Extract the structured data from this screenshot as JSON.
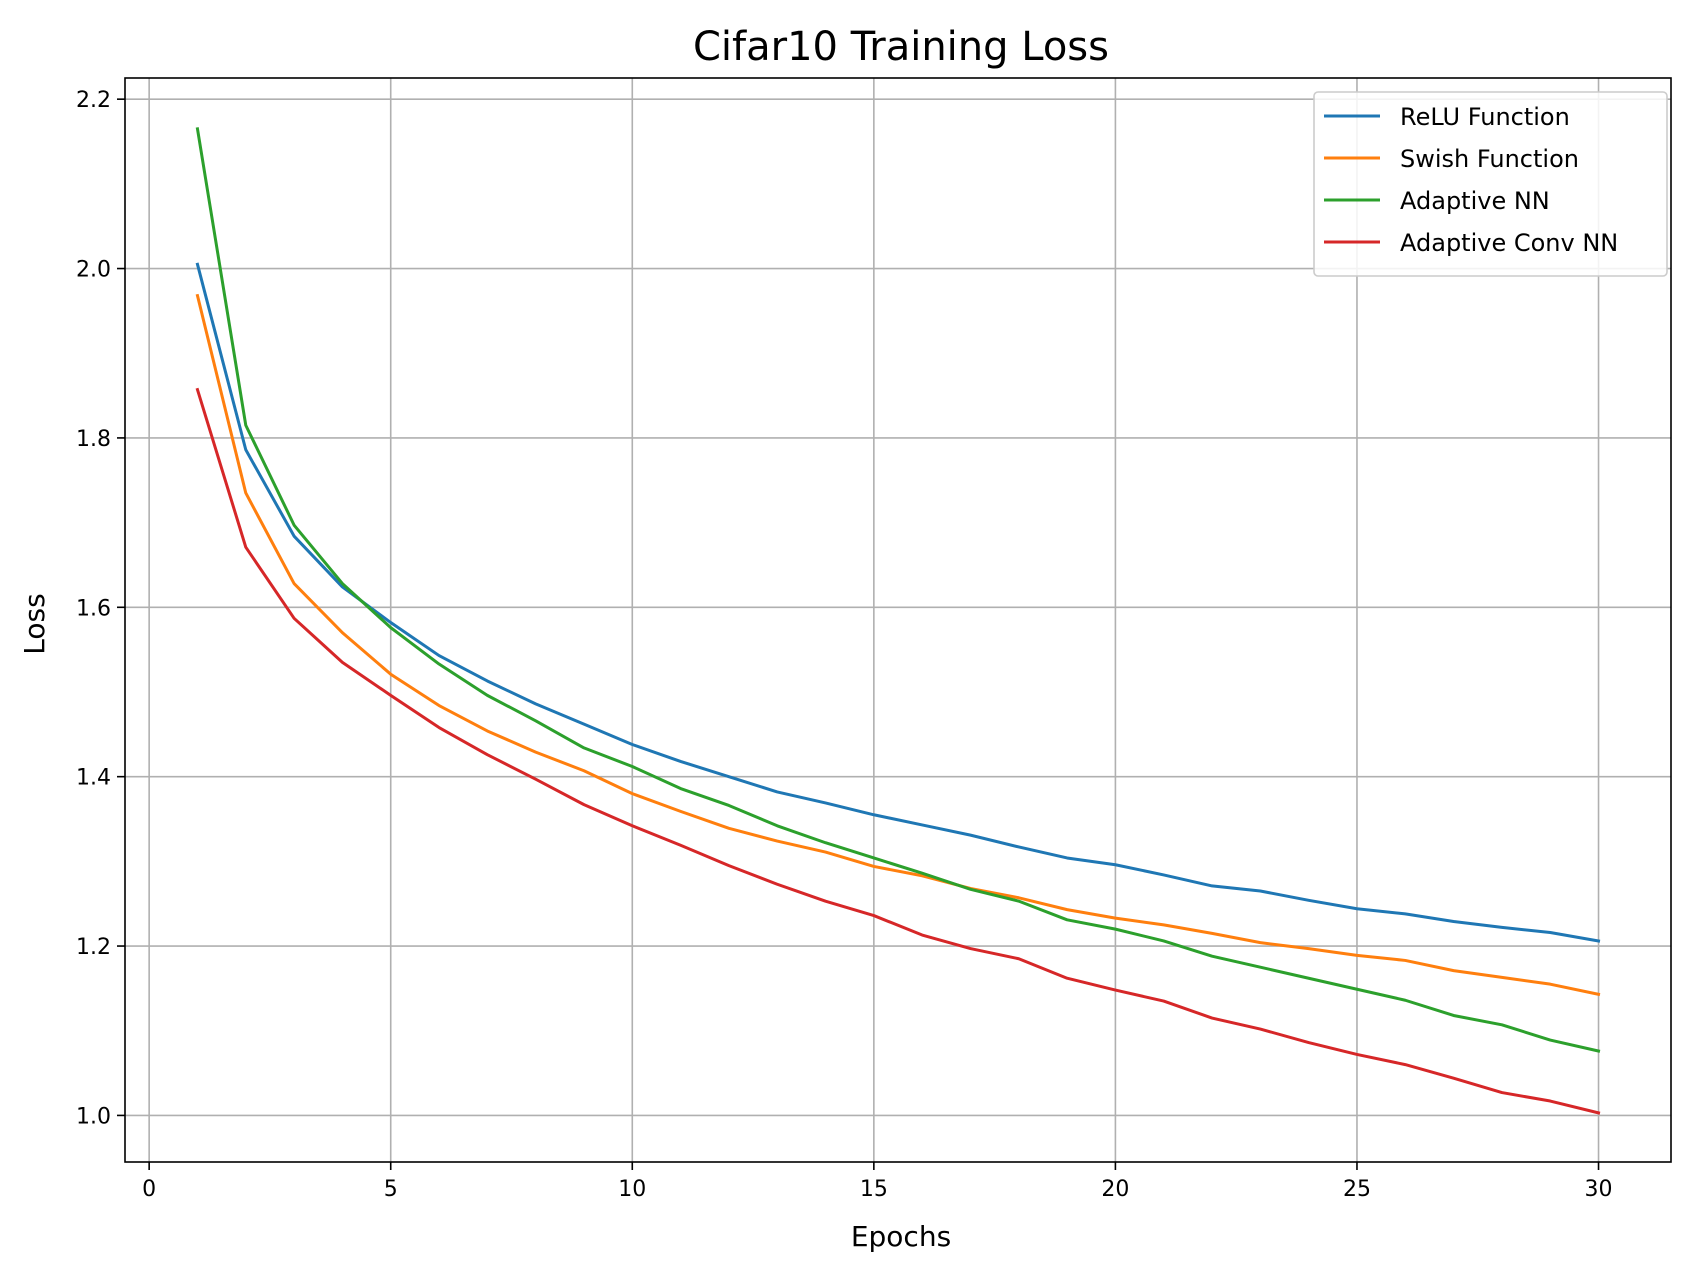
{
  "chart_data": {
    "type": "line",
    "title": "Cifar10 Training Loss",
    "xlabel": "Epochs",
    "ylabel": "Loss",
    "xlim": [
      -0.5,
      31.5
    ],
    "ylim": [
      0.945,
      2.225
    ],
    "xticks": [
      0,
      5,
      10,
      15,
      20,
      25,
      30
    ],
    "yticks": [
      1.0,
      1.2,
      1.4,
      1.6,
      1.8,
      2.0,
      2.2
    ],
    "grid": true,
    "legend_position": "top-right",
    "x": [
      1,
      2,
      3,
      4,
      5,
      6,
      7,
      8,
      9,
      10,
      11,
      12,
      13,
      14,
      15,
      16,
      17,
      18,
      19,
      20,
      21,
      22,
      23,
      24,
      25,
      26,
      27,
      28,
      29,
      30
    ],
    "series": [
      {
        "name": "ReLU Function",
        "color": "#1f77b4",
        "values": [
          2.005,
          1.786,
          1.684,
          1.624,
          1.582,
          1.543,
          1.513,
          1.486,
          1.462,
          1.438,
          1.418,
          1.4,
          1.382,
          1.369,
          1.355,
          1.343,
          1.331,
          1.317,
          1.304,
          1.296,
          1.284,
          1.271,
          1.265,
          1.254,
          1.244,
          1.238,
          1.229,
          1.222,
          1.216,
          1.206
        ]
      },
      {
        "name": "Swish Function",
        "color": "#ff7f0e",
        "values": [
          1.968,
          1.735,
          1.628,
          1.57,
          1.521,
          1.484,
          1.454,
          1.429,
          1.407,
          1.38,
          1.359,
          1.339,
          1.324,
          1.311,
          1.294,
          1.283,
          1.268,
          1.257,
          1.243,
          1.233,
          1.225,
          1.215,
          1.204,
          1.197,
          1.189,
          1.183,
          1.171,
          1.163,
          1.155,
          1.143
        ]
      },
      {
        "name": "Adaptive NN",
        "color": "#2ca02c",
        "values": [
          2.165,
          1.815,
          1.697,
          1.628,
          1.576,
          1.533,
          1.496,
          1.466,
          1.434,
          1.412,
          1.386,
          1.366,
          1.342,
          1.322,
          1.304,
          1.286,
          1.267,
          1.253,
          1.231,
          1.22,
          1.206,
          1.188,
          1.175,
          1.162,
          1.149,
          1.136,
          1.118,
          1.107,
          1.089,
          1.076
        ]
      },
      {
        "name": "Adaptive Conv NN",
        "color": "#d62728",
        "values": [
          1.857,
          1.671,
          1.587,
          1.535,
          1.496,
          1.458,
          1.426,
          1.397,
          1.367,
          1.342,
          1.319,
          1.295,
          1.273,
          1.253,
          1.236,
          1.213,
          1.197,
          1.185,
          1.162,
          1.148,
          1.135,
          1.115,
          1.102,
          1.086,
          1.072,
          1.06,
          1.044,
          1.027,
          1.017,
          1.003
        ]
      }
    ]
  }
}
